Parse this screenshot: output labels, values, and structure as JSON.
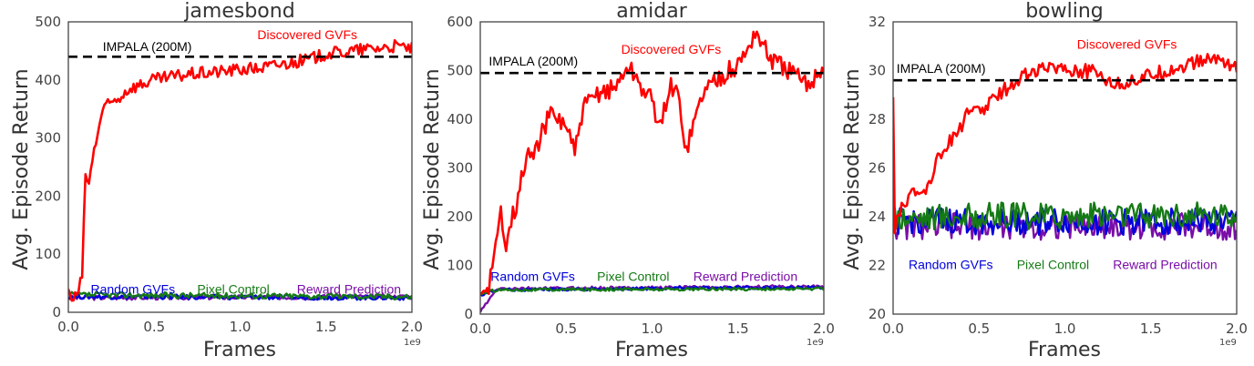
{
  "figure": {
    "panels": [
      {
        "id": "jamesbond",
        "title": "jamesbond"
      },
      {
        "id": "amidar",
        "title": "amidar"
      },
      {
        "id": "bowling",
        "title": "bowling"
      }
    ],
    "xlabel": "Frames",
    "ylabel": "Avg. Episode Return",
    "x_offset_text": "1e9"
  },
  "colors": {
    "discovered": "#ff0000",
    "random": "#0000dd",
    "pixel": "#157a15",
    "reward": "#7a0ea8",
    "impala": "#000000",
    "axis_text": "#444444"
  },
  "chart_data": [
    {
      "type": "line",
      "title": "jamesbond",
      "xlabel": "Frames",
      "ylabel": "Avg. Episode Return",
      "x_scale_note": "1e9",
      "xlim": [
        0.0,
        2.0
      ],
      "ylim": [
        0,
        500
      ],
      "xticks": [
        "0.0",
        "0.5",
        "1.0",
        "1.5",
        "2.0"
      ],
      "yticks": [
        0,
        100,
        200,
        300,
        400,
        500
      ],
      "grid": false,
      "baseline": {
        "name": "IMPALA (200M)",
        "value": 440,
        "style": "dashed"
      },
      "annotations": [
        {
          "text": "IMPALA (200M)",
          "x": 0.2,
          "y": 450,
          "series": "impala"
        },
        {
          "text": "Discovered GVFs",
          "x": 1.1,
          "y": 470,
          "series": "discovered"
        },
        {
          "text": "Random GVFs",
          "x": 0.13,
          "y": 32,
          "series": "random"
        },
        {
          "text": "Pixel Control",
          "x": 0.75,
          "y": 32,
          "series": "pixel"
        },
        {
          "text": "Reward Prediction",
          "x": 1.33,
          "y": 32,
          "series": "reward"
        }
      ],
      "series": [
        {
          "name": "Discovered GVFs",
          "key": "discovered",
          "x": [
            0.0,
            0.02,
            0.05,
            0.08,
            0.1,
            0.12,
            0.15,
            0.18,
            0.2,
            0.25,
            0.3,
            0.35,
            0.4,
            0.5,
            0.6,
            0.7,
            0.8,
            0.9,
            1.0,
            1.1,
            1.2,
            1.3,
            1.4,
            1.5,
            1.6,
            1.7,
            1.8,
            1.9,
            2.0
          ],
          "y": [
            40,
            20,
            30,
            60,
            240,
            220,
            280,
            320,
            350,
            360,
            370,
            385,
            390,
            400,
            405,
            410,
            412,
            415,
            418,
            420,
            425,
            430,
            435,
            445,
            448,
            452,
            455,
            458,
            455
          ]
        },
        {
          "name": "Random GVFs",
          "key": "random",
          "x": [
            0.0,
            2.0
          ],
          "y": [
            27,
            25
          ],
          "noise": 4
        },
        {
          "name": "Pixel Control",
          "key": "pixel",
          "x": [
            0.0,
            2.0
          ],
          "y": [
            30,
            27
          ],
          "noise": 5
        },
        {
          "name": "Reward Prediction",
          "key": "reward",
          "x": [
            0.0,
            2.0
          ],
          "y": [
            25,
            27
          ],
          "noise": 4
        }
      ]
    },
    {
      "type": "line",
      "title": "amidar",
      "xlabel": "Frames",
      "ylabel": "Avg. Episode Return",
      "x_scale_note": "1e9",
      "xlim": [
        0.0,
        2.0
      ],
      "ylim": [
        0,
        600
      ],
      "xticks": [
        "0.0",
        "0.5",
        "1.0",
        "1.5",
        "2.0"
      ],
      "yticks": [
        0,
        100,
        200,
        300,
        400,
        500,
        600
      ],
      "grid": false,
      "baseline": {
        "name": "IMPALA (200M)",
        "value": 495,
        "style": "dashed"
      },
      "annotations": [
        {
          "text": "IMPALA (200M)",
          "x": 0.05,
          "y": 510,
          "series": "impala"
        },
        {
          "text": "Discovered GVFs",
          "x": 0.82,
          "y": 535,
          "series": "discovered"
        },
        {
          "text": "Random GVFs",
          "x": 0.06,
          "y": 68,
          "series": "random"
        },
        {
          "text": "Pixel Control",
          "x": 0.68,
          "y": 68,
          "series": "pixel"
        },
        {
          "text": "Reward Prediction",
          "x": 1.24,
          "y": 68,
          "series": "reward"
        }
      ],
      "series": [
        {
          "name": "Discovered GVFs",
          "key": "discovered",
          "x": [
            0.0,
            0.05,
            0.08,
            0.12,
            0.15,
            0.18,
            0.22,
            0.25,
            0.28,
            0.3,
            0.35,
            0.4,
            0.45,
            0.5,
            0.55,
            0.6,
            0.65,
            0.7,
            0.75,
            0.8,
            0.85,
            0.9,
            0.95,
            1.0,
            1.05,
            1.1,
            1.15,
            1.2,
            1.3,
            1.4,
            1.5,
            1.55,
            1.6,
            1.7,
            1.8,
            1.9,
            2.0
          ],
          "y": [
            40,
            60,
            110,
            210,
            150,
            200,
            230,
            300,
            330,
            320,
            360,
            410,
            400,
            390,
            330,
            420,
            440,
            460,
            460,
            470,
            510,
            490,
            460,
            440,
            380,
            470,
            450,
            340,
            460,
            490,
            510,
            540,
            580,
            520,
            500,
            470,
            510
          ]
        },
        {
          "name": "Random GVFs",
          "key": "random",
          "x": [
            0.0,
            0.1,
            2.0
          ],
          "y": [
            40,
            50,
            55
          ],
          "noise": 3
        },
        {
          "name": "Pixel Control",
          "key": "pixel",
          "x": [
            0.0,
            0.1,
            2.0
          ],
          "y": [
            42,
            50,
            52
          ],
          "noise": 3
        },
        {
          "name": "Reward Prediction",
          "key": "reward",
          "x": [
            0.0,
            0.1,
            2.0
          ],
          "y": [
            5,
            52,
            57
          ],
          "noise": 3
        }
      ]
    },
    {
      "type": "line",
      "title": "bowling",
      "xlabel": "Frames",
      "ylabel": "Avg. Episode Return",
      "x_scale_note": "1e9",
      "xlim": [
        0.0,
        2.0
      ],
      "ylim": [
        20,
        32
      ],
      "xticks": [
        "0.0",
        "0.5",
        "1.0",
        "1.5",
        "2.0"
      ],
      "yticks": [
        20,
        22,
        24,
        26,
        28,
        30,
        32
      ],
      "grid": false,
      "baseline": {
        "name": "IMPALA (200M)",
        "value": 29.6,
        "style": "dashed"
      },
      "annotations": [
        {
          "text": "IMPALA (200M)",
          "x": 0.02,
          "y": 29.9,
          "series": "impala"
        },
        {
          "text": "Discovered GVFs",
          "x": 1.07,
          "y": 30.9,
          "series": "discovered"
        },
        {
          "text": "Random GVFs",
          "x": 0.09,
          "y": 21.85,
          "series": "random"
        },
        {
          "text": "Pixel Control",
          "x": 0.72,
          "y": 21.85,
          "series": "pixel"
        },
        {
          "text": "Reward Prediction",
          "x": 1.28,
          "y": 21.85,
          "series": "reward"
        }
      ],
      "series": [
        {
          "name": "Discovered GVFs",
          "key": "discovered",
          "x": [
            0.0,
            0.005,
            0.02,
            0.05,
            0.1,
            0.15,
            0.2,
            0.25,
            0.3,
            0.35,
            0.4,
            0.45,
            0.5,
            0.55,
            0.6,
            0.65,
            0.7,
            0.75,
            0.8,
            0.85,
            0.9,
            0.95,
            1.0,
            1.1,
            1.2,
            1.3,
            1.4,
            1.5,
            1.6,
            1.7,
            1.8,
            1.9,
            2.0
          ],
          "y": [
            28.9,
            23.0,
            24.0,
            24.5,
            24.8,
            25.0,
            25.2,
            26.3,
            26.8,
            27.3,
            27.8,
            28.4,
            28.3,
            28.6,
            28.9,
            29.2,
            29.5,
            29.8,
            29.9,
            30.0,
            30.1,
            30.2,
            30.1,
            30.0,
            29.9,
            29.4,
            29.6,
            29.8,
            30.0,
            30.2,
            30.4,
            30.5,
            30.1
          ]
        },
        {
          "name": "Random GVFs",
          "key": "random",
          "x": [
            0.0,
            2.0
          ],
          "y": [
            23.8,
            23.8
          ],
          "noise": 0.55
        },
        {
          "name": "Pixel Control",
          "key": "pixel",
          "x": [
            0.0,
            2.0
          ],
          "y": [
            24.0,
            24.1
          ],
          "noise": 0.55
        },
        {
          "name": "Reward Prediction",
          "key": "reward",
          "x": [
            0.0,
            2.0
          ],
          "y": [
            23.6,
            23.6
          ],
          "noise": 0.55
        }
      ]
    }
  ]
}
